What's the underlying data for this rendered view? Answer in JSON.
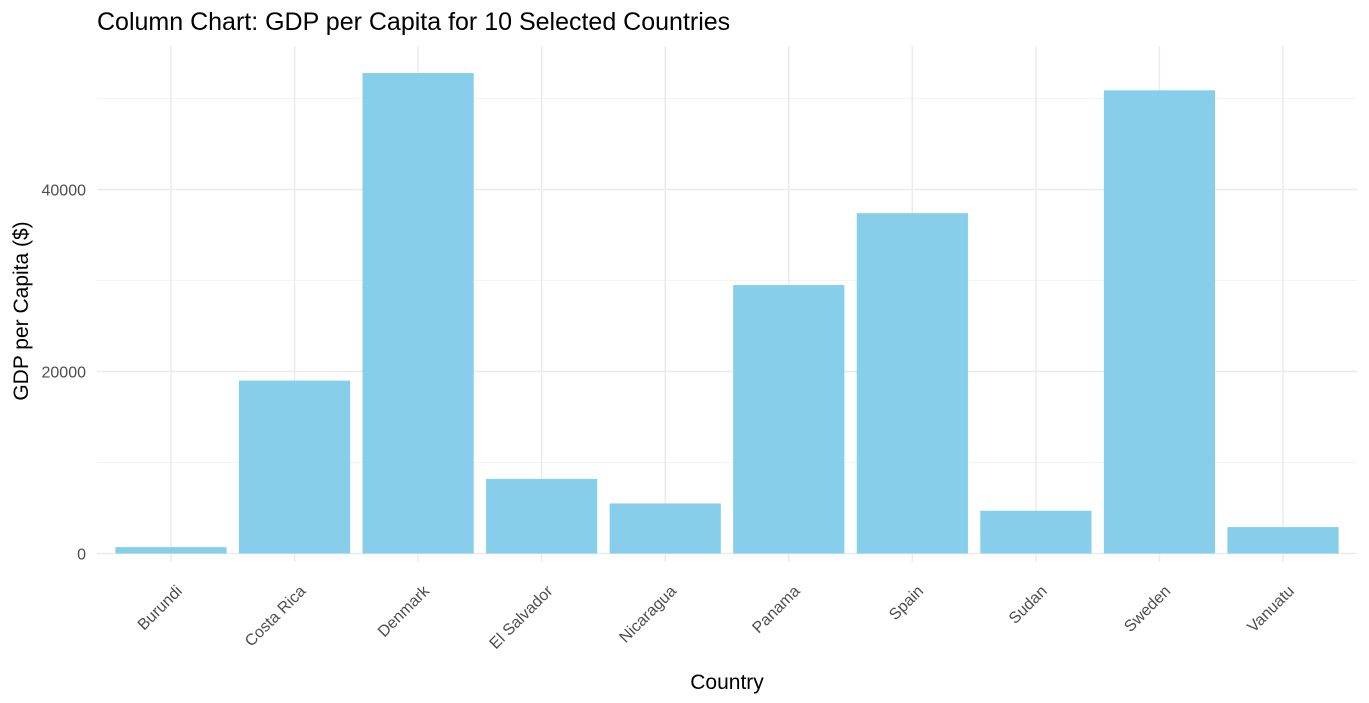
{
  "chart_data": {
    "type": "bar",
    "title": "Column Chart: GDP per Capita for 10 Selected Countries",
    "xlabel": "Country",
    "ylabel": "GDP per Capita ($)",
    "categories": [
      "Burundi",
      "Costa Rica",
      "Denmark",
      "El Salvador",
      "Nicaragua",
      "Panama",
      "Spain",
      "Sudan",
      "Sweden",
      "Vanuatu"
    ],
    "values": [
      700,
      19000,
      52800,
      8200,
      5500,
      29500,
      37400,
      4700,
      50900,
      2900
    ],
    "ylim": [
      0,
      55000
    ],
    "yticks": [
      0,
      20000,
      40000
    ],
    "ytick_labels": [
      "0",
      "20000",
      "40000"
    ],
    "grid": true,
    "legend": "none",
    "colors": {
      "bar": "#87CEEB",
      "grid_major": "#EBEBEB",
      "grid_minor": "#F4F4F4"
    }
  }
}
